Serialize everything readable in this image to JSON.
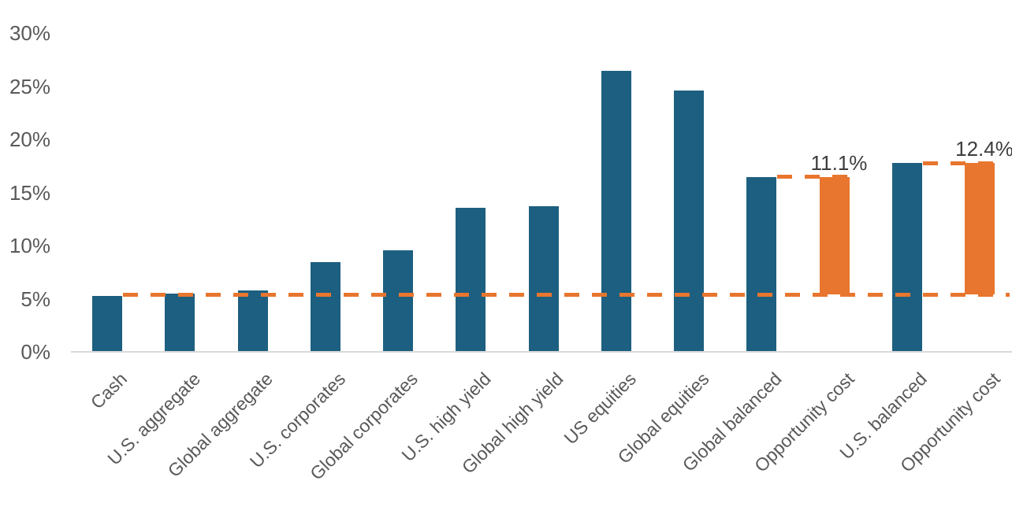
{
  "colors": {
    "asset_bar": "#1d5f80",
    "opportunity_bar": "#e8762e",
    "reference_line": "#e8762e",
    "axis_text": "#595959",
    "data_label_text": "#3d3d3d",
    "axis_line": "#d9d9d9"
  },
  "chart_data": {
    "type": "bar",
    "title": "",
    "xlabel": "",
    "ylabel": "",
    "ylim": [
      0,
      30
    ],
    "grid": false,
    "legend": false,
    "y_ticks": [
      {
        "label": "0%",
        "value": 0
      },
      {
        "label": "5%",
        "value": 5
      },
      {
        "label": "10%",
        "value": 10
      },
      {
        "label": "15%",
        "value": 15
      },
      {
        "label": "20%",
        "value": 20
      },
      {
        "label": "25%",
        "value": 25
      },
      {
        "label": "30%",
        "value": 30
      }
    ],
    "categories": [
      "Cash",
      "U.S. aggregate",
      "Global aggregate",
      "U.S. corporates",
      "Global corporates",
      "U.S. high yield",
      "Global high yield",
      "US equities",
      "Global equities",
      "Global balanced",
      "Opportunity cost",
      "U.S. balanced",
      "Opportunity cost"
    ],
    "bars": [
      {
        "category": "Cash",
        "value": 5.2,
        "base": 0,
        "kind": "asset"
      },
      {
        "category": "U.S. aggregate",
        "value": 5.4,
        "base": 0,
        "kind": "asset"
      },
      {
        "category": "Global aggregate",
        "value": 5.7,
        "base": 0,
        "kind": "asset"
      },
      {
        "category": "U.S. corporates",
        "value": 8.4,
        "base": 0,
        "kind": "asset"
      },
      {
        "category": "Global corporates",
        "value": 9.5,
        "base": 0,
        "kind": "asset"
      },
      {
        "category": "U.S. high yield",
        "value": 13.5,
        "base": 0,
        "kind": "asset"
      },
      {
        "category": "Global high yield",
        "value": 13.6,
        "base": 0,
        "kind": "asset"
      },
      {
        "category": "US equities",
        "value": 26.4,
        "base": 0,
        "kind": "asset"
      },
      {
        "category": "Global equities",
        "value": 24.5,
        "base": 0,
        "kind": "asset"
      },
      {
        "category": "Global balanced",
        "value": 16.4,
        "base": 0,
        "kind": "asset"
      },
      {
        "category": "Opportunity cost",
        "value": 11.1,
        "base": 5.3,
        "kind": "opportunity",
        "data_label": "11.1%"
      },
      {
        "category": "U.S. balanced",
        "value": 17.7,
        "base": 0,
        "kind": "asset"
      },
      {
        "category": "Opportunity cost",
        "value": 12.4,
        "base": 5.3,
        "kind": "opportunity",
        "data_label": "12.4%"
      }
    ],
    "reference_line": {
      "value": 5.3,
      "style": "dashed",
      "starts_after_category": "Cash"
    },
    "connector_lines": [
      {
        "value": 16.4,
        "style": "dashed",
        "from_category_index": 9,
        "to_category_index": 10
      },
      {
        "value": 17.7,
        "style": "dashed",
        "from_category_index": 11,
        "to_category_index": 12
      }
    ]
  }
}
